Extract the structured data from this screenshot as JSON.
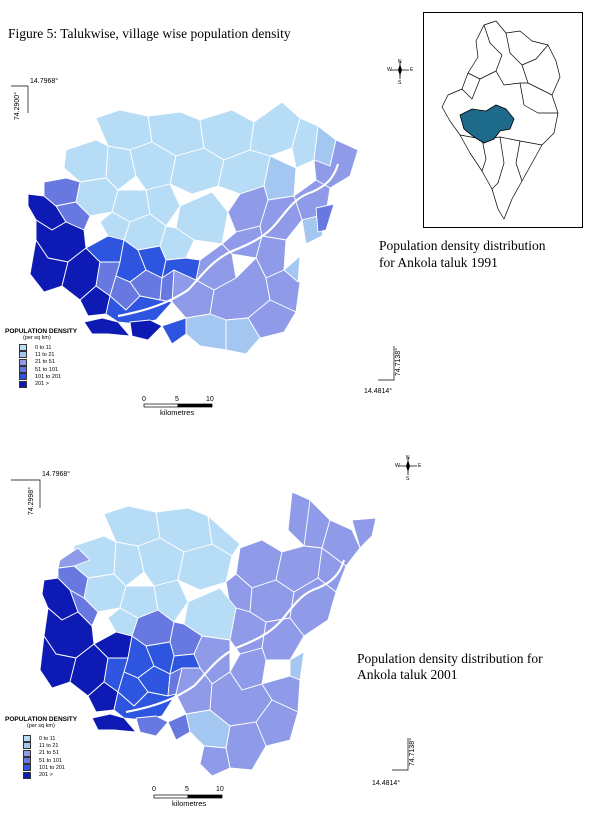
{
  "figure_title": "Figure 5: Talukwise, village wise population density",
  "palette": {
    "c1": "#b7dcf5",
    "c2": "#a3c7f0",
    "c3": "#8f9ae8",
    "c4": "#6779e0",
    "c5": "#2d55e0",
    "c6": "#0e1ab4",
    "inset_highlight": "#1e6a8a"
  },
  "map_1991": {
    "caption_line1": "Population density distribution",
    "caption_line2": "for Ankola taluk 1991",
    "coord_top_lat": "14.7968°",
    "coord_left_lon": "74.2900°",
    "coord_bottom_lat": "14.4814°",
    "coord_right_lon": "74.7138°",
    "legend_title": "POPULATION DENSITY",
    "legend_unit": "(per sq km)",
    "legend_items": [
      "0 to  11",
      "11 to  21",
      "21 to  51",
      "51 to 101",
      "101 to 201",
      "201 >"
    ],
    "scale_ticks": [
      "0",
      "5",
      "10"
    ],
    "scale_label": "kilometres"
  },
  "map_2001": {
    "caption_line1": "Population density distribution for",
    "caption_line2": "Ankola taluk 2001",
    "coord_top_lat": "14.7968°",
    "coord_left_lon": "74.2998°",
    "coord_bottom_lat": "14.4814°",
    "coord_right_lon": "74.7138°",
    "legend_title": "POPULATION DENSITY",
    "legend_unit": "(per sq km)",
    "legend_items": [
      "0 to  11",
      "11 to  21",
      "21 to  51",
      "51 to 101",
      "101 to 201",
      "201 >"
    ],
    "scale_ticks": [
      "0",
      "5",
      "10"
    ],
    "scale_label": "kilometres"
  },
  "compass_letters": [
    "N",
    "E",
    "S",
    "W"
  ]
}
